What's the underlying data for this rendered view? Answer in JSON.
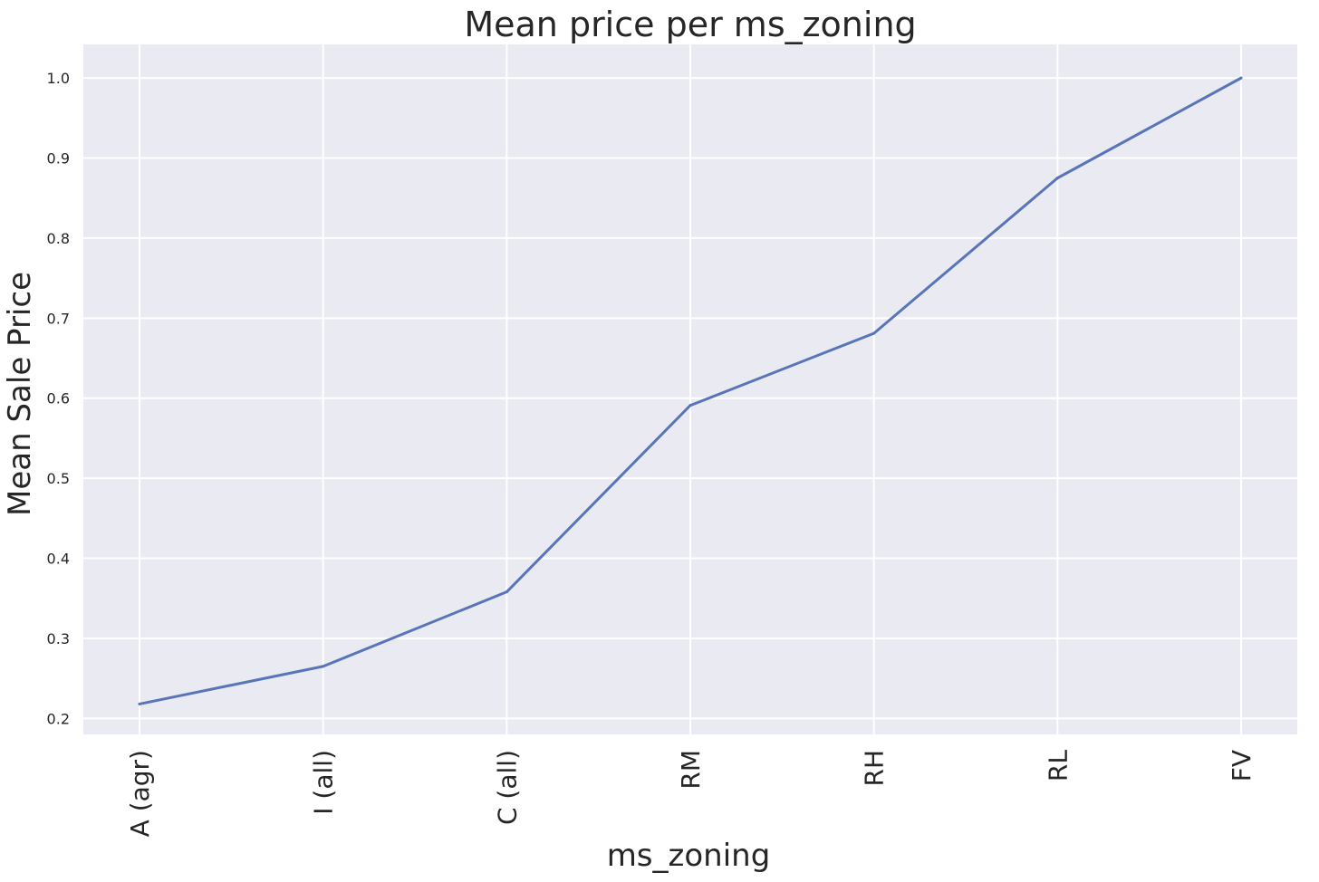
{
  "chart_data": {
    "type": "line",
    "title": "Mean price per ms_zoning",
    "xlabel": "ms_zoning",
    "ylabel": "Mean Sale Price",
    "categories": [
      "A (agr)",
      "I (all)",
      "C (all)",
      "RM",
      "RH",
      "RL",
      "FV"
    ],
    "series": [
      {
        "values": [
          0.218,
          0.265,
          0.358,
          0.591,
          0.681,
          0.875,
          1.0
        ],
        "color": "#5875b8"
      }
    ],
    "ylim": [
      0.18,
      1.042
    ],
    "yticks": [
      "0.2",
      "0.3",
      "0.4",
      "0.5",
      "0.6",
      "0.7",
      "0.8",
      "0.9",
      "1.0"
    ],
    "grid": true,
    "background_color": "#eaeaf2",
    "grid_color": "#ffffff"
  }
}
